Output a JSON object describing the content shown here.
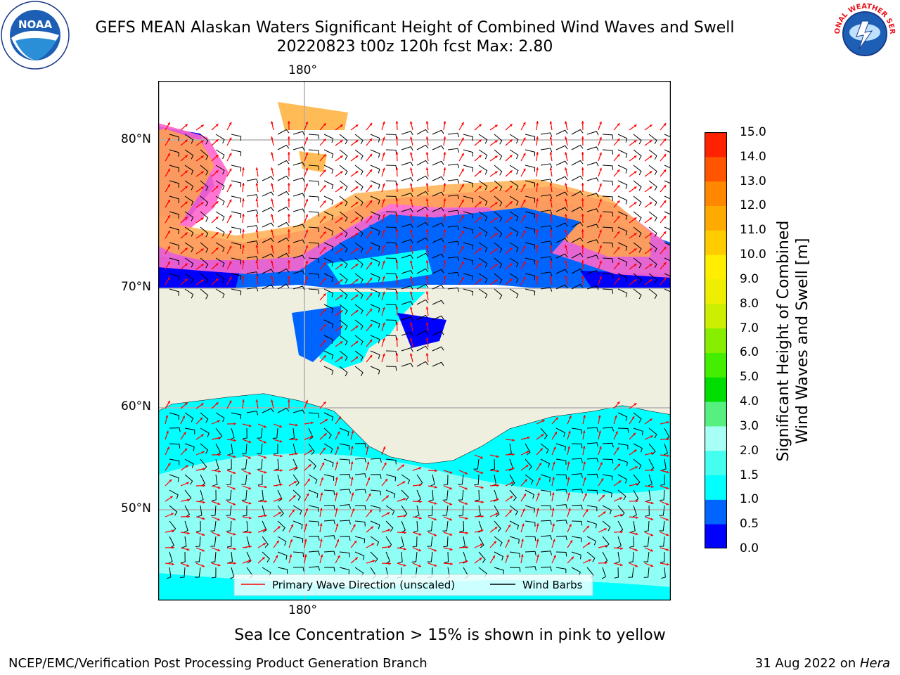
{
  "title": {
    "line1": "GEFS MEAN Alaskan Waters Significant Height of Combined Wind Waves and Swell",
    "line2": "20220823 t00z 120h fcst   Max: 2.80"
  },
  "logos": {
    "left": {
      "name": "noaa-logo",
      "text": "NOAA",
      "ring_text": "NATIONAL OCEANIC AND ATMOSPHERIC ADMINISTRATION · U.S. DEPARTMENT OF COMMERCE"
    },
    "right": {
      "name": "nws-logo",
      "ring_text": "NATIONAL WEATHER SERVICE"
    }
  },
  "map": {
    "top_lon_label": "180°",
    "bottom_lon_label": "180°",
    "lat_labels": [
      "80°N",
      "70°N",
      "60°N",
      "50°N"
    ],
    "colors": {
      "land": "#efefe0",
      "ocean_low": "#00ffff",
      "ocean_mid": "#a8fffa",
      "ice_pink": "#ff66cc",
      "ice_orange": "#ffaa44",
      "grid": "#b0b0b0",
      "wave_arrow": "#ff0000",
      "barb": "#000000"
    }
  },
  "legend": {
    "items": [
      {
        "label": "Primary Wave Direction (unscaled)",
        "color": "#ff0000"
      },
      {
        "label": "Wind Barbs",
        "color": "#000000"
      }
    ]
  },
  "colorbar": {
    "label_line1": "Significant Height of Combined",
    "label_line2": "Wind Waves and Swell [m]",
    "ticks": [
      "15.0",
      "14.0",
      "13.0",
      "12.0",
      "11.0",
      "10.0",
      "9.0",
      "8.0",
      "7.0",
      "6.0",
      "5.0",
      "4.0",
      "3.0",
      "2.0",
      "1.5",
      "1.0",
      "0.5",
      "0.0"
    ],
    "colors_bottom_to_top": [
      "#0000ff",
      "#0064ff",
      "#00ffff",
      "#44fff0",
      "#a8fff5",
      "#55f080",
      "#00dd00",
      "#44ee00",
      "#88ee00",
      "#ccee00",
      "#eeee00",
      "#ffee00",
      "#ffcc00",
      "#ffaa00",
      "#ff8800",
      "#ff5500",
      "#ff2200"
    ]
  },
  "note": "Sea Ice Concentration > 15% is shown in pink to yellow",
  "footer": {
    "left": "NCEP/EMC/Verification Post Processing Product Generation Branch",
    "right_date": "31 Aug 2022 on ",
    "right_host": "Hera"
  }
}
